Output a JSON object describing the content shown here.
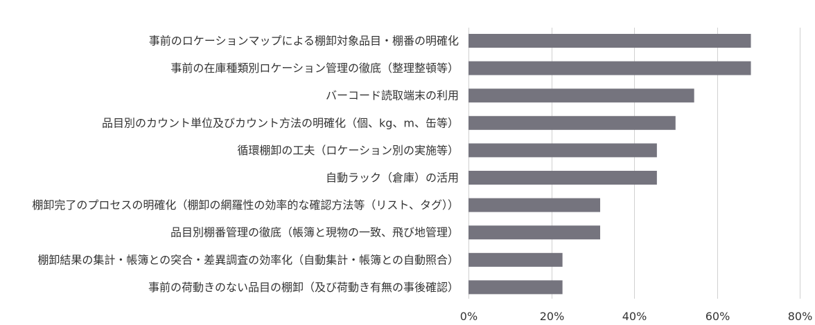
{
  "chart_data": {
    "type": "bar",
    "orientation": "horizontal",
    "title": "",
    "xlabel": "",
    "ylabel": "",
    "categories": [
      "事前のロケーションマップによる棚卸対象品目・棚番の明確化",
      "事前の在庫種類別ロケーション管理の徹底（整理整頓等）",
      "バーコード読取端末の利用",
      "品目別のカウント単位及びカウント方法の明確化（個、kg、m、缶等）",
      "循環棚卸の工夫（ロケーション別の実施等）",
      "自動ラック（倉庫）の活用",
      "棚卸完了のプロセスの明確化（棚卸の網羅性の効率的な確認方法等（リスト、タグ））",
      "品目別棚番管理の徹底（帳簿と現物の一致、飛び地管理）",
      "棚卸結果の集計・帳簿との突合・差異調査の効率化（自動集計・帳簿との自動照合）",
      "事前の荷動きのない品目の棚卸（及び荷動き有無の事後確認）"
    ],
    "values": [
      68.2,
      68.2,
      54.5,
      50.0,
      45.5,
      45.5,
      31.8,
      31.8,
      22.7,
      22.7
    ],
    "xlim": [
      0,
      80
    ],
    "xticks": [
      0,
      20,
      40,
      60,
      80
    ],
    "xtick_labels": [
      "0%",
      "20%",
      "40%",
      "60%",
      "80%"
    ],
    "grid": true,
    "legend": "none",
    "colors": {
      "bar": "#75747e",
      "grid": "#d0d0d0",
      "text": "#333333"
    }
  }
}
